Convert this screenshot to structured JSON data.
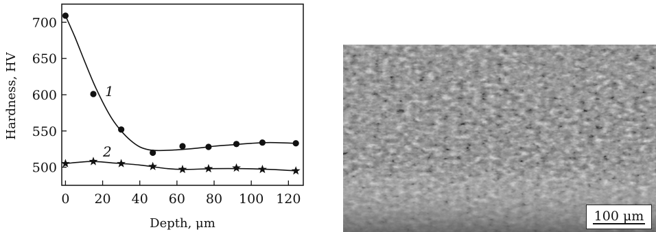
{
  "chart_data": {
    "type": "scatter",
    "xlabel": "Depth, μm",
    "ylabel": "Hardness, HV",
    "xlim": [
      -2,
      128
    ],
    "ylim": [
      475,
      725
    ],
    "xticks": [
      0,
      20,
      40,
      60,
      80,
      100,
      120
    ],
    "yticks": [
      500,
      550,
      600,
      650,
      700
    ],
    "series": [
      {
        "name": "1",
        "marker": "circle",
        "x": [
          0,
          15,
          30,
          47,
          63,
          77,
          92,
          106,
          124
        ],
        "y": [
          709,
          601,
          552,
          520,
          529,
          528,
          532,
          534,
          533
        ],
        "fit": [
          [
            0,
            709
          ],
          [
            5,
            680
          ],
          [
            10,
            648
          ],
          [
            15,
            617
          ],
          [
            20,
            590
          ],
          [
            25,
            567
          ],
          [
            30,
            550
          ],
          [
            35,
            537
          ],
          [
            40,
            528
          ],
          [
            45,
            524
          ],
          [
            50,
            523
          ],
          [
            60,
            524
          ],
          [
            70,
            526
          ],
          [
            80,
            529
          ],
          [
            90,
            531
          ],
          [
            100,
            533
          ],
          [
            110,
            534
          ],
          [
            124,
            533
          ]
        ]
      },
      {
        "name": "2",
        "marker": "star",
        "x": [
          0,
          15,
          30,
          47,
          63,
          77,
          92,
          106,
          124
        ],
        "y": [
          505,
          508,
          505,
          501,
          497,
          498,
          499,
          497,
          495
        ],
        "fit": [
          [
            0,
            505
          ],
          [
            8,
            507
          ],
          [
            15,
            508
          ],
          [
            25,
            506
          ],
          [
            40,
            503
          ],
          [
            55,
            498
          ],
          [
            65,
            497
          ],
          [
            80,
            498
          ],
          [
            95,
            498
          ],
          [
            110,
            497
          ],
          [
            124,
            495
          ]
        ]
      }
    ]
  },
  "micrograph": {
    "scale_bar_label": "100 μm"
  }
}
